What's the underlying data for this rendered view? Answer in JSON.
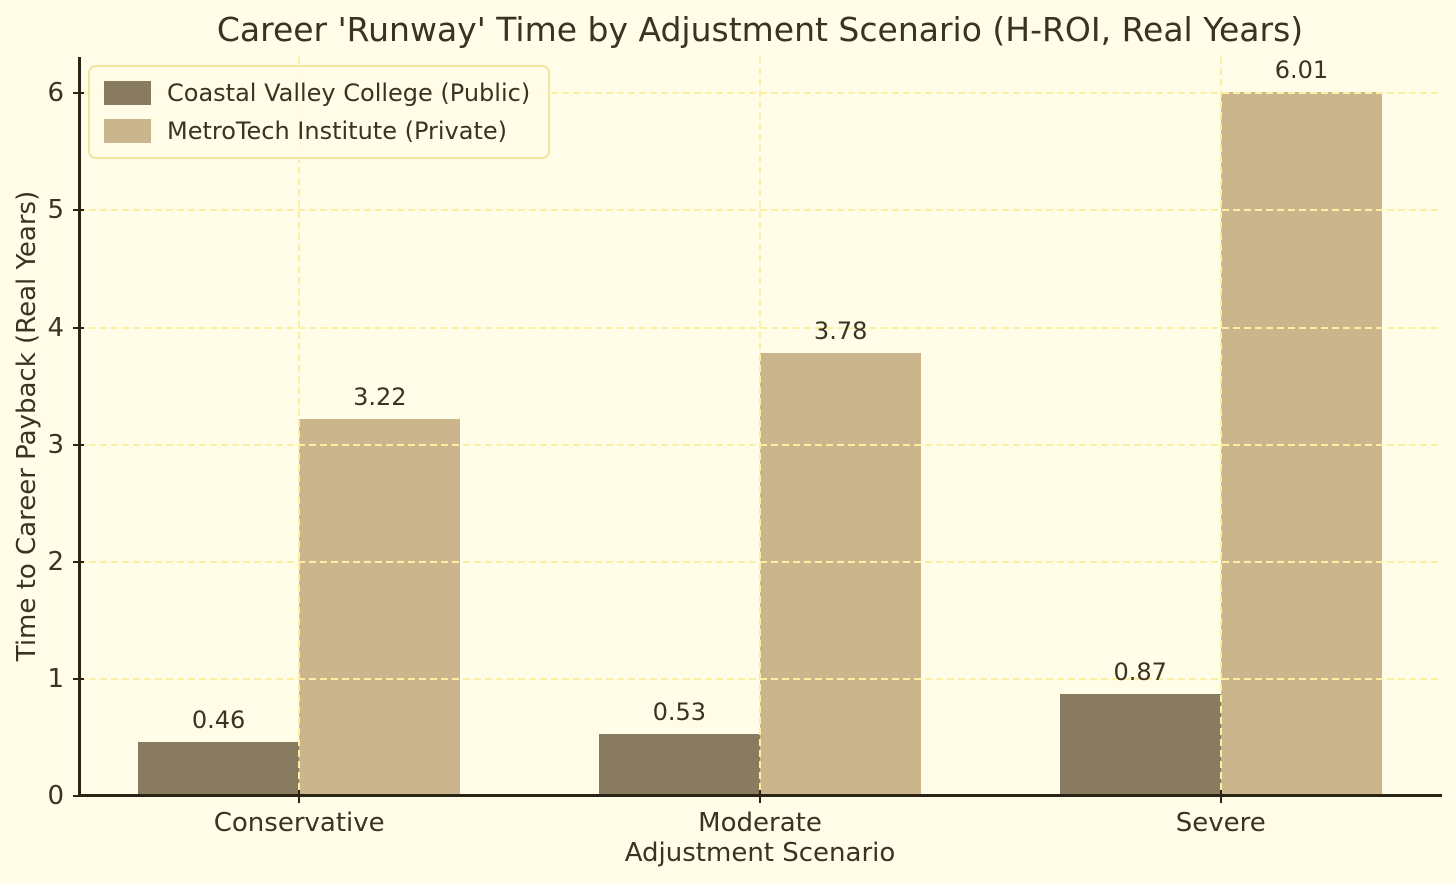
{
  "figure": {
    "title": "Career 'Runway' Time by Adjustment Scenario (H-ROI, Real Years)",
    "xlabel": "Adjustment Scenario",
    "ylabel": "Time to Career Payback (Real Years)"
  },
  "chart_data": {
    "type": "bar",
    "title": "Career 'Runway' Time by Adjustment Scenario (H-ROI, Real Years)",
    "xlabel": "Adjustment Scenario",
    "ylabel": "Time to Career Payback (Real Years)",
    "categories": [
      "Conservative",
      "Moderate",
      "Severe"
    ],
    "series": [
      {
        "name": "Coastal Valley College (Public)",
        "color": "#887B5F",
        "values": [
          0.46,
          0.53,
          0.87
        ]
      },
      {
        "name": "MetroTech Institute (Private)",
        "color": "#CBB58D",
        "values": [
          3.22,
          3.78,
          6.01
        ]
      }
    ],
    "value_labels": [
      [
        "0.46",
        "0.53",
        "0.87"
      ],
      [
        "3.22",
        "3.78",
        "6.01"
      ]
    ],
    "y_ticks": [
      0,
      1,
      2,
      3,
      4,
      5,
      6
    ],
    "ylim": [
      0,
      6.31
    ],
    "grid": true,
    "grid_style": "dashed",
    "legend_position": "upper left",
    "colors": {
      "background": "#FFFDE7",
      "grid": "#FBEFA1",
      "spine": "#2A2416",
      "text": "#3B3222",
      "legend_border": "#F2E5A0"
    }
  }
}
